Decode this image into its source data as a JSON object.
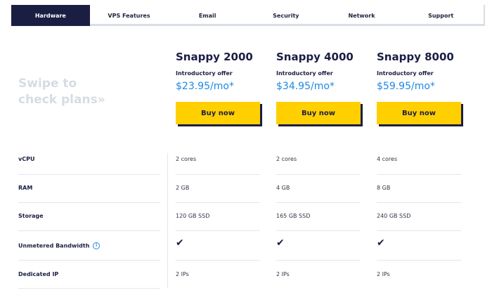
{
  "tabs": [
    "Hardware",
    "VPS Features",
    "Email",
    "Security",
    "Network",
    "Support"
  ],
  "swipe": {
    "line1": "Swipe to",
    "line2": "check plans»"
  },
  "plans": [
    {
      "name": "Snappy 2000",
      "offer": "Introductory offer",
      "price": "$23.95/mo*",
      "button": "Buy now"
    },
    {
      "name": "Snappy 4000",
      "offer": "Introductory offer",
      "price": "$34.95/mo*",
      "button": "Buy now"
    },
    {
      "name": "Snappy 8000",
      "offer": "Introductory offer",
      "price": "$59.95/mo*",
      "button": "Buy now"
    }
  ],
  "rows": {
    "vcpu": {
      "label": "vCPU",
      "values": [
        "2 cores",
        "2 cores",
        "4 cores"
      ]
    },
    "ram": {
      "label": "RAM",
      "values": [
        "2 GB",
        "4 GB",
        "8 GB"
      ]
    },
    "storage": {
      "label": "Storage",
      "values": [
        "120 GB SSD",
        "165 GB SSD",
        "240 GB SSD"
      ]
    },
    "bandwidth": {
      "label": "Unmetered Bandwidth",
      "icon": "info-icon",
      "values": [
        "check-icon",
        "check-icon",
        "check-icon"
      ]
    },
    "ip": {
      "label": "Dedicated IP",
      "values": [
        "2 IPs",
        "2 IPs",
        "2 IPs"
      ]
    }
  },
  "colors": {
    "navy": "#1b1e43",
    "accent_yellow": "#ffcf00",
    "price_blue": "#1e88e5"
  }
}
